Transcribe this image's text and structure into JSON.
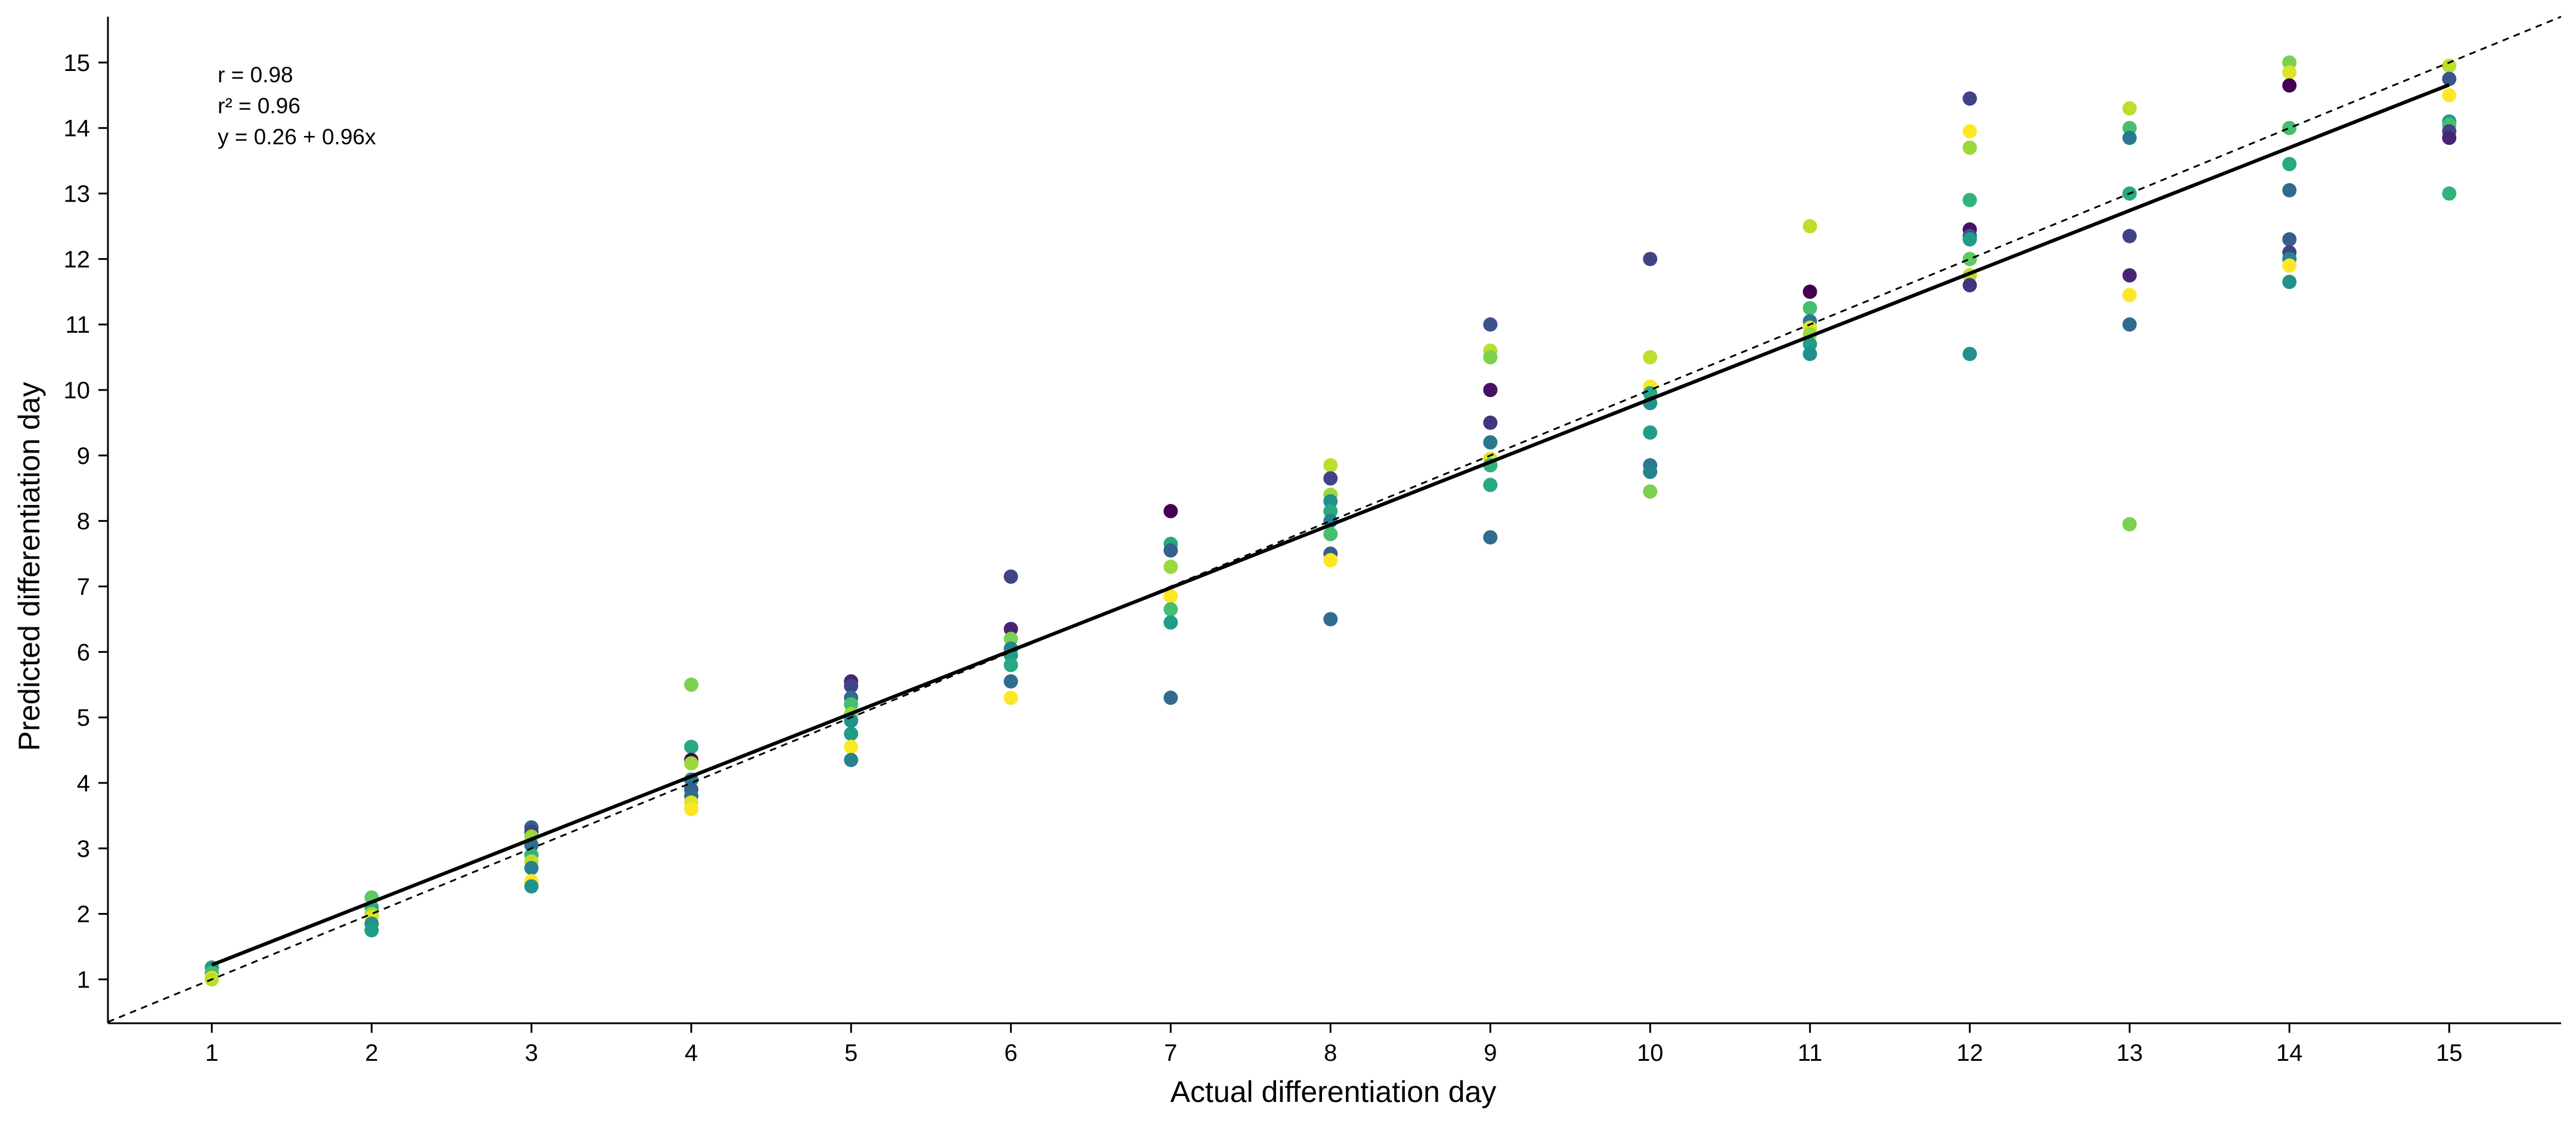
{
  "chart_data": {
    "type": "scatter",
    "xlabel": "Actual differentiation day",
    "ylabel": "Predicted differentiation day",
    "xlim": [
      0.35,
      15.7
    ],
    "ylim": [
      0.33,
      15.7
    ],
    "x_ticks": [
      1,
      2,
      3,
      4,
      5,
      6,
      7,
      8,
      9,
      10,
      11,
      12,
      13,
      14,
      15
    ],
    "y_ticks": [
      1,
      2,
      3,
      4,
      5,
      6,
      7,
      8,
      9,
      10,
      11,
      12,
      13,
      14,
      15
    ],
    "grid": false,
    "annotations": [
      "r = 0.98",
      "r² = 0.96",
      "y = 0.26 + 0.96x"
    ],
    "fit_line": {
      "intercept": 0.26,
      "slope": 0.96,
      "x_range": [
        1,
        15
      ],
      "style": "solid",
      "color": "#000000"
    },
    "identity_line": {
      "slope": 1,
      "intercept": 0,
      "style": "dashed",
      "color": "#000000"
    },
    "colormap": "viridis",
    "points": [
      {
        "x": 1,
        "y": 1.18,
        "c": 0.55
      },
      {
        "x": 1,
        "y": 1.1,
        "c": 0.7
      },
      {
        "x": 1,
        "y": 1.02,
        "c": 1.0
      },
      {
        "x": 1,
        "y": 1.0,
        "c": 0.9
      },
      {
        "x": 2,
        "y": 2.25,
        "c": 0.75
      },
      {
        "x": 2,
        "y": 2.1,
        "c": 0.6
      },
      {
        "x": 2,
        "y": 2.0,
        "c": 0.85
      },
      {
        "x": 2,
        "y": 1.95,
        "c": 0.95
      },
      {
        "x": 2,
        "y": 1.85,
        "c": 0.5
      },
      {
        "x": 2,
        "y": 1.75,
        "c": 0.55
      },
      {
        "x": 3,
        "y": 3.32,
        "c": 0.3
      },
      {
        "x": 3,
        "y": 3.25,
        "c": 0.2
      },
      {
        "x": 3,
        "y": 3.18,
        "c": 0.85
      },
      {
        "x": 3,
        "y": 3.05,
        "c": 0.35
      },
      {
        "x": 3,
        "y": 2.9,
        "c": 0.65
      },
      {
        "x": 3,
        "y": 2.8,
        "c": 0.9
      },
      {
        "x": 3,
        "y": 2.7,
        "c": 0.45
      },
      {
        "x": 3,
        "y": 2.5,
        "c": 1.0
      },
      {
        "x": 3,
        "y": 2.42,
        "c": 0.5
      },
      {
        "x": 4,
        "y": 5.5,
        "c": 0.8
      },
      {
        "x": 4,
        "y": 4.55,
        "c": 0.6
      },
      {
        "x": 4,
        "y": 4.35,
        "c": 0.0
      },
      {
        "x": 4,
        "y": 4.3,
        "c": 0.85
      },
      {
        "x": 4,
        "y": 4.05,
        "c": 0.4
      },
      {
        "x": 4,
        "y": 3.9,
        "c": 0.3
      },
      {
        "x": 4,
        "y": 3.8,
        "c": 0.35
      },
      {
        "x": 4,
        "y": 3.7,
        "c": 0.95
      },
      {
        "x": 4,
        "y": 3.6,
        "c": 1.0
      },
      {
        "x": 5,
        "y": 5.55,
        "c": 0.1
      },
      {
        "x": 5,
        "y": 5.48,
        "c": 0.2
      },
      {
        "x": 5,
        "y": 5.3,
        "c": 0.35
      },
      {
        "x": 5,
        "y": 5.2,
        "c": 0.7
      },
      {
        "x": 5,
        "y": 5.05,
        "c": 0.85
      },
      {
        "x": 5,
        "y": 4.95,
        "c": 0.5
      },
      {
        "x": 5,
        "y": 4.75,
        "c": 0.55
      },
      {
        "x": 5,
        "y": 4.55,
        "c": 1.0
      },
      {
        "x": 5,
        "y": 4.35,
        "c": 0.45
      },
      {
        "x": 6,
        "y": 7.15,
        "c": 0.2
      },
      {
        "x": 6,
        "y": 6.35,
        "c": 0.1
      },
      {
        "x": 6,
        "y": 6.2,
        "c": 0.8
      },
      {
        "x": 6,
        "y": 6.05,
        "c": 0.45
      },
      {
        "x": 6,
        "y": 5.95,
        "c": 0.55
      },
      {
        "x": 6,
        "y": 5.8,
        "c": 0.6
      },
      {
        "x": 6,
        "y": 5.55,
        "c": 0.35
      },
      {
        "x": 6,
        "y": 5.3,
        "c": 1.0
      },
      {
        "x": 7,
        "y": 8.15,
        "c": 0.0
      },
      {
        "x": 7,
        "y": 7.65,
        "c": 0.6
      },
      {
        "x": 7,
        "y": 7.55,
        "c": 0.3
      },
      {
        "x": 7,
        "y": 7.3,
        "c": 0.85
      },
      {
        "x": 7,
        "y": 6.85,
        "c": 1.0
      },
      {
        "x": 7,
        "y": 6.65,
        "c": 0.7
      },
      {
        "x": 7,
        "y": 6.45,
        "c": 0.55
      },
      {
        "x": 7,
        "y": 5.3,
        "c": 0.35
      },
      {
        "x": 8,
        "y": 8.85,
        "c": 0.9
      },
      {
        "x": 8,
        "y": 8.65,
        "c": 0.2
      },
      {
        "x": 8,
        "y": 8.4,
        "c": 0.85
      },
      {
        "x": 8,
        "y": 8.3,
        "c": 0.5
      },
      {
        "x": 8,
        "y": 8.15,
        "c": 0.6
      },
      {
        "x": 8,
        "y": 8.0,
        "c": 0.45
      },
      {
        "x": 8,
        "y": 7.8,
        "c": 0.7
      },
      {
        "x": 8,
        "y": 7.5,
        "c": 0.3
      },
      {
        "x": 8,
        "y": 7.4,
        "c": 1.0
      },
      {
        "x": 8,
        "y": 6.5,
        "c": 0.35
      },
      {
        "x": 9,
        "y": 11.0,
        "c": 0.25
      },
      {
        "x": 9,
        "y": 10.6,
        "c": 0.9
      },
      {
        "x": 9,
        "y": 10.5,
        "c": 0.8
      },
      {
        "x": 9,
        "y": 10.0,
        "c": 0.05
      },
      {
        "x": 9,
        "y": 9.5,
        "c": 0.15
      },
      {
        "x": 9,
        "y": 9.2,
        "c": 0.4
      },
      {
        "x": 9,
        "y": 8.95,
        "c": 0.95
      },
      {
        "x": 9,
        "y": 8.85,
        "c": 0.65
      },
      {
        "x": 9,
        "y": 8.55,
        "c": 0.6
      },
      {
        "x": 9,
        "y": 7.75,
        "c": 0.35
      },
      {
        "x": 10,
        "y": 12.0,
        "c": 0.2
      },
      {
        "x": 10,
        "y": 10.5,
        "c": 0.9
      },
      {
        "x": 10,
        "y": 10.05,
        "c": 1.0
      },
      {
        "x": 10,
        "y": 9.95,
        "c": 0.6
      },
      {
        "x": 10,
        "y": 9.8,
        "c": 0.5
      },
      {
        "x": 10,
        "y": 9.35,
        "c": 0.55
      },
      {
        "x": 10,
        "y": 8.85,
        "c": 0.4
      },
      {
        "x": 10,
        "y": 8.75,
        "c": 0.45
      },
      {
        "x": 10,
        "y": 8.45,
        "c": 0.8
      },
      {
        "x": 11,
        "y": 12.5,
        "c": 0.9
      },
      {
        "x": 11,
        "y": 11.5,
        "c": 0.0
      },
      {
        "x": 11,
        "y": 11.25,
        "c": 0.7
      },
      {
        "x": 11,
        "y": 11.05,
        "c": 0.4
      },
      {
        "x": 11,
        "y": 10.95,
        "c": 0.95
      },
      {
        "x": 11,
        "y": 10.85,
        "c": 0.85
      },
      {
        "x": 11,
        "y": 10.7,
        "c": 0.55
      },
      {
        "x": 11,
        "y": 10.55,
        "c": 0.5
      },
      {
        "x": 12,
        "y": 14.45,
        "c": 0.2
      },
      {
        "x": 12,
        "y": 13.95,
        "c": 1.0
      },
      {
        "x": 12,
        "y": 13.7,
        "c": 0.85
      },
      {
        "x": 12,
        "y": 12.9,
        "c": 0.65
      },
      {
        "x": 12,
        "y": 12.45,
        "c": 0.05
      },
      {
        "x": 12,
        "y": 12.35,
        "c": 0.25
      },
      {
        "x": 12,
        "y": 12.3,
        "c": 0.55
      },
      {
        "x": 12,
        "y": 12.0,
        "c": 0.75
      },
      {
        "x": 12,
        "y": 11.75,
        "c": 0.9
      },
      {
        "x": 12,
        "y": 11.6,
        "c": 0.15
      },
      {
        "x": 12,
        "y": 10.55,
        "c": 0.5
      },
      {
        "x": 13,
        "y": 14.3,
        "c": 0.9
      },
      {
        "x": 13,
        "y": 14.0,
        "c": 0.7
      },
      {
        "x": 13,
        "y": 13.85,
        "c": 0.4
      },
      {
        "x": 13,
        "y": 13.0,
        "c": 0.6
      },
      {
        "x": 13,
        "y": 12.35,
        "c": 0.2
      },
      {
        "x": 13,
        "y": 11.75,
        "c": 0.1
      },
      {
        "x": 13,
        "y": 11.45,
        "c": 1.0
      },
      {
        "x": 13,
        "y": 11.0,
        "c": 0.35
      },
      {
        "x": 13,
        "y": 7.95,
        "c": 0.8
      },
      {
        "x": 14,
        "y": 15.0,
        "c": 0.8
      },
      {
        "x": 14,
        "y": 14.85,
        "c": 0.95
      },
      {
        "x": 14,
        "y": 14.65,
        "c": 0.0
      },
      {
        "x": 14,
        "y": 14.0,
        "c": 0.7
      },
      {
        "x": 14,
        "y": 13.45,
        "c": 0.6
      },
      {
        "x": 14,
        "y": 13.05,
        "c": 0.35
      },
      {
        "x": 14,
        "y": 12.3,
        "c": 0.3
      },
      {
        "x": 14,
        "y": 12.1,
        "c": 0.2
      },
      {
        "x": 14,
        "y": 12.0,
        "c": 0.45
      },
      {
        "x": 14,
        "y": 11.9,
        "c": 1.0
      },
      {
        "x": 14,
        "y": 11.65,
        "c": 0.5
      },
      {
        "x": 15,
        "y": 14.95,
        "c": 0.9
      },
      {
        "x": 15,
        "y": 14.75,
        "c": 0.25
      },
      {
        "x": 15,
        "y": 14.5,
        "c": 1.0
      },
      {
        "x": 15,
        "y": 14.1,
        "c": 0.55
      },
      {
        "x": 15,
        "y": 14.05,
        "c": 0.7
      },
      {
        "x": 15,
        "y": 13.95,
        "c": 0.2
      },
      {
        "x": 15,
        "y": 13.85,
        "c": 0.1
      },
      {
        "x": 15,
        "y": 13.0,
        "c": 0.65
      }
    ]
  }
}
